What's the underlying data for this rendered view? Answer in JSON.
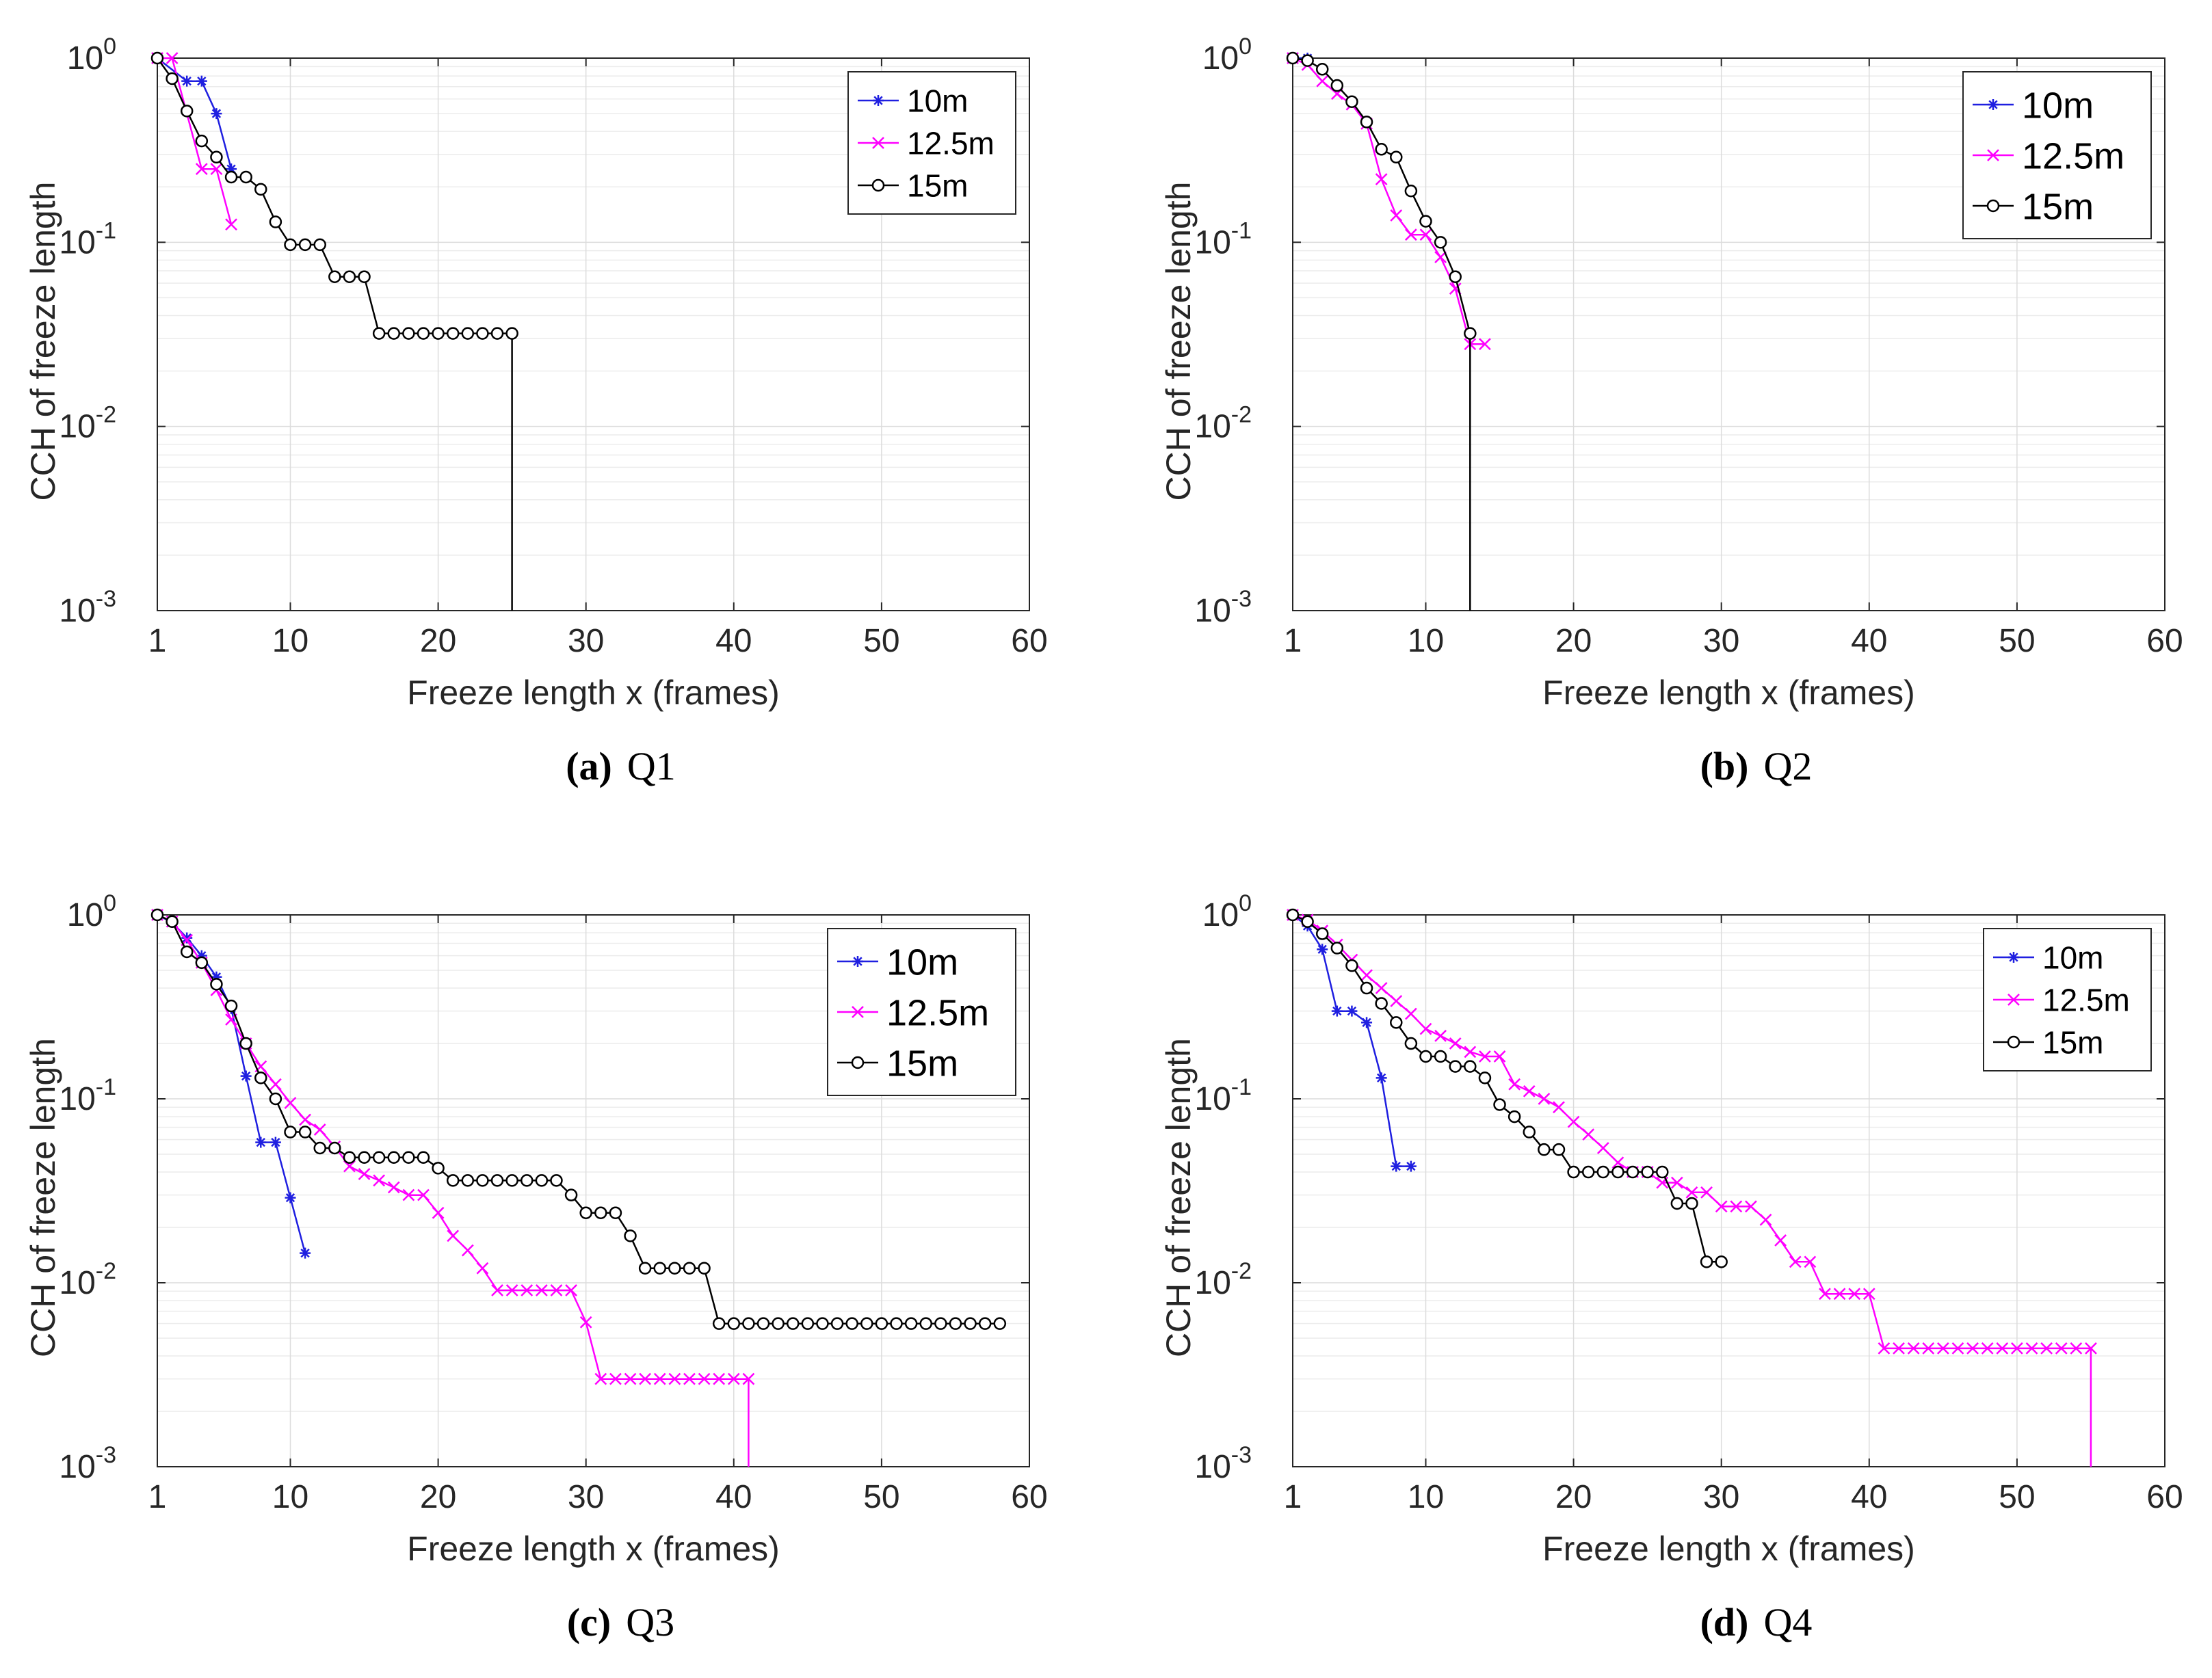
{
  "chart_data": [
    {
      "type": "line",
      "panel": "a",
      "caption_label": "(a)",
      "caption_text": "Q1",
      "xlabel": "Freeze length x (frames)",
      "ylabel": "CCH of freeze length",
      "xlim": [
        1,
        60
      ],
      "ylim": [
        0.001,
        1
      ],
      "yscale": "log",
      "grid": true,
      "x_ticks": [
        1,
        10,
        20,
        30,
        40,
        50,
        60
      ],
      "x_tick_labels": [
        "1",
        "10",
        "20",
        "30",
        "40",
        "50",
        "60"
      ],
      "y_ticks": [
        1,
        0.1,
        0.01,
        0.001
      ],
      "y_tick_bases": [
        "10",
        "10",
        "10",
        "10"
      ],
      "y_tick_exps": [
        "0",
        "-1",
        "-2",
        "-3"
      ],
      "legend_position": "top-right",
      "legend_size": "small",
      "series": [
        {
          "name": "10m",
          "color": "#1f1fe0",
          "marker": "star",
          "x": [
            1,
            3,
            4,
            5,
            6
          ],
          "y": [
            1,
            0.75,
            0.75,
            0.5,
            0.25
          ]
        },
        {
          "name": "12.5m",
          "color": "#ff00ff",
          "marker": "x",
          "x": [
            1,
            2,
            4,
            5,
            6
          ],
          "y": [
            1,
            1,
            0.25,
            0.25,
            0.125
          ]
        },
        {
          "name": "15m",
          "color": "#000000",
          "marker": "circle",
          "x": [
            1,
            2,
            3,
            4,
            5,
            6,
            7,
            8,
            9,
            10,
            11,
            12,
            13,
            14,
            15,
            16,
            17,
            18,
            19,
            20,
            21,
            22,
            23,
            24,
            25
          ],
          "y": [
            1,
            0.774,
            0.516,
            0.355,
            0.29,
            0.226,
            0.226,
            0.194,
            0.129,
            0.097,
            0.097,
            0.097,
            0.065,
            0.065,
            0.065,
            0.032,
            0.032,
            0.032,
            0.032,
            0.032,
            0.032,
            0.032,
            0.032,
            0.032,
            0.032
          ],
          "drop_to_bottom_at": 25
        }
      ]
    },
    {
      "type": "line",
      "panel": "b",
      "caption_label": "(b)",
      "caption_text": "Q2",
      "xlabel": "Freeze length x (frames)",
      "ylabel": "CCH of freeze length",
      "xlim": [
        1,
        60
      ],
      "ylim": [
        0.001,
        1
      ],
      "yscale": "log",
      "grid": true,
      "x_ticks": [
        1,
        10,
        20,
        30,
        40,
        50,
        60
      ],
      "x_tick_labels": [
        "1",
        "10",
        "20",
        "30",
        "40",
        "50",
        "60"
      ],
      "y_ticks": [
        1,
        0.1,
        0.01,
        0.001
      ],
      "y_tick_bases": [
        "10",
        "10",
        "10",
        "10"
      ],
      "y_tick_exps": [
        "0",
        "-1",
        "-2",
        "-3"
      ],
      "legend_position": "top-right",
      "legend_size": "large",
      "series": [
        {
          "name": "10m",
          "color": "#1f1fe0",
          "marker": "star",
          "x": [
            1,
            2
          ],
          "y": [
            1,
            1
          ]
        },
        {
          "name": "12.5m",
          "color": "#ff00ff",
          "marker": "x",
          "x": [
            1,
            2,
            3,
            4,
            5,
            6,
            7,
            8,
            9,
            10,
            11,
            12,
            13,
            14
          ],
          "y": [
            1,
            0.92,
            0.75,
            0.64,
            0.56,
            0.44,
            0.22,
            0.14,
            0.11,
            0.11,
            0.083,
            0.056,
            0.028,
            0.028
          ]
        },
        {
          "name": "15m",
          "color": "#000000",
          "marker": "circle",
          "x": [
            1,
            2,
            3,
            4,
            5,
            6,
            7,
            8,
            9,
            10,
            11,
            12,
            13
          ],
          "y": [
            1,
            0.97,
            0.87,
            0.71,
            0.58,
            0.45,
            0.32,
            0.29,
            0.19,
            0.13,
            0.1,
            0.065,
            0.032
          ],
          "drop_to_bottom_at": 13
        }
      ]
    },
    {
      "type": "line",
      "panel": "c",
      "caption_label": "(c)",
      "caption_text": "Q3",
      "xlabel": "Freeze length x (frames)",
      "ylabel": "CCH of freeze length",
      "xlim": [
        1,
        60
      ],
      "ylim": [
        0.001,
        1
      ],
      "yscale": "log",
      "grid": true,
      "x_ticks": [
        1,
        10,
        20,
        30,
        40,
        50,
        60
      ],
      "x_tick_labels": [
        "1",
        "10",
        "20",
        "30",
        "40",
        "50",
        "60"
      ],
      "y_ticks": [
        1,
        0.1,
        0.01,
        0.001
      ],
      "y_tick_bases": [
        "10",
        "10",
        "10",
        "10"
      ],
      "y_tick_exps": [
        "0",
        "-1",
        "-2",
        "-3"
      ],
      "legend_position": "top-right",
      "legend_size": "large",
      "series": [
        {
          "name": "10m",
          "color": "#1f1fe0",
          "marker": "star",
          "x": [
            1,
            2,
            3,
            4,
            5,
            6,
            7,
            8,
            9,
            10,
            11
          ],
          "y": [
            1,
            0.91,
            0.75,
            0.6,
            0.46,
            0.31,
            0.133,
            0.058,
            0.058,
            0.029,
            0.0145
          ]
        },
        {
          "name": "12.5m",
          "color": "#ff00ff",
          "marker": "x",
          "x": [
            1,
            2,
            3,
            4,
            5,
            6,
            7,
            8,
            9,
            10,
            11,
            12,
            13,
            14,
            15,
            16,
            17,
            18,
            19,
            20,
            21,
            22,
            23,
            24,
            25,
            26,
            27,
            28,
            29,
            30,
            31,
            32,
            33,
            34,
            35,
            36,
            37,
            38,
            39,
            40,
            41
          ],
          "y": [
            1,
            0.92,
            0.73,
            0.55,
            0.39,
            0.27,
            0.2,
            0.15,
            0.12,
            0.095,
            0.077,
            0.068,
            0.055,
            0.043,
            0.039,
            0.036,
            0.033,
            0.03,
            0.03,
            0.024,
            0.018,
            0.015,
            0.012,
            0.0091,
            0.0091,
            0.0091,
            0.0091,
            0.0091,
            0.0091,
            0.0061,
            0.003,
            0.003,
            0.003,
            0.003,
            0.003,
            0.003,
            0.003,
            0.003,
            0.003,
            0.003,
            0.003
          ],
          "drop_to_bottom_at": 41
        },
        {
          "name": "15m",
          "color": "#000000",
          "marker": "circle",
          "x": [
            1,
            2,
            3,
            4,
            5,
            6,
            7,
            8,
            9,
            10,
            11,
            12,
            13,
            14,
            15,
            16,
            17,
            18,
            19,
            20,
            21,
            22,
            23,
            24,
            25,
            26,
            27,
            28,
            29,
            30,
            31,
            32,
            33,
            34,
            35,
            36,
            37,
            38,
            39,
            40,
            41,
            42,
            43,
            44,
            45,
            46,
            47,
            48,
            49,
            50,
            51,
            52,
            53,
            54,
            55,
            56,
            57,
            58
          ],
          "y": [
            1,
            0.92,
            0.63,
            0.55,
            0.42,
            0.32,
            0.2,
            0.13,
            0.1,
            0.066,
            0.066,
            0.054,
            0.054,
            0.048,
            0.048,
            0.048,
            0.048,
            0.048,
            0.048,
            0.042,
            0.036,
            0.036,
            0.036,
            0.036,
            0.036,
            0.036,
            0.036,
            0.036,
            0.03,
            0.024,
            0.024,
            0.024,
            0.018,
            0.012,
            0.012,
            0.012,
            0.012,
            0.012,
            0.006,
            0.006,
            0.006,
            0.006,
            0.006,
            0.006,
            0.006,
            0.006,
            0.006,
            0.006,
            0.006,
            0.006,
            0.006,
            0.006,
            0.006,
            0.006,
            0.006,
            0.006,
            0.006,
            0.006
          ]
        }
      ]
    },
    {
      "type": "line",
      "panel": "d",
      "caption_label": "(d)",
      "caption_text": "Q4",
      "xlabel": "Freeze length x (frames)",
      "ylabel": "CCH of freeze length",
      "xlim": [
        1,
        60
      ],
      "ylim": [
        0.001,
        1
      ],
      "yscale": "log",
      "grid": true,
      "x_ticks": [
        1,
        10,
        20,
        30,
        40,
        50,
        60
      ],
      "x_tick_labels": [
        "1",
        "10",
        "20",
        "30",
        "40",
        "50",
        "60"
      ],
      "y_ticks": [
        1,
        0.1,
        0.01,
        0.001
      ],
      "y_tick_bases": [
        "10",
        "10",
        "10",
        "10"
      ],
      "y_tick_exps": [
        "0",
        "-1",
        "-2",
        "-3"
      ],
      "legend_position": "top-right",
      "legend_size": "small",
      "series": [
        {
          "name": "10m",
          "color": "#1f1fe0",
          "marker": "star",
          "x": [
            1,
            2,
            3,
            4,
            5,
            6,
            7,
            8,
            9
          ],
          "y": [
            1,
            0.87,
            0.65,
            0.3,
            0.3,
            0.26,
            0.13,
            0.043,
            0.043
          ]
        },
        {
          "name": "12.5m",
          "color": "#ff00ff",
          "marker": "x",
          "x": [
            1,
            2,
            3,
            4,
            5,
            6,
            7,
            8,
            9,
            10,
            11,
            12,
            13,
            14,
            15,
            16,
            17,
            18,
            19,
            20,
            21,
            22,
            23,
            24,
            25,
            26,
            27,
            28,
            29,
            30,
            31,
            32,
            33,
            34,
            35,
            36,
            37,
            38,
            39,
            40,
            41,
            42,
            43,
            44,
            45,
            46,
            47,
            48,
            49,
            50,
            51,
            52,
            53,
            54,
            55
          ],
          "y": [
            1,
            0.94,
            0.82,
            0.69,
            0.57,
            0.47,
            0.4,
            0.34,
            0.29,
            0.24,
            0.22,
            0.2,
            0.18,
            0.17,
            0.17,
            0.12,
            0.11,
            0.1,
            0.09,
            0.075,
            0.064,
            0.054,
            0.045,
            0.04,
            0.04,
            0.035,
            0.035,
            0.031,
            0.031,
            0.026,
            0.026,
            0.026,
            0.022,
            0.017,
            0.013,
            0.013,
            0.0087,
            0.0087,
            0.0087,
            0.0087,
            0.0044,
            0.0044,
            0.0044,
            0.0044,
            0.0044,
            0.0044,
            0.0044,
            0.0044,
            0.0044,
            0.0044,
            0.0044,
            0.0044,
            0.0044,
            0.0044,
            0.0044
          ],
          "drop_to_bottom_at": 55
        },
        {
          "name": "15m",
          "color": "#000000",
          "marker": "circle",
          "x": [
            1,
            2,
            3,
            4,
            5,
            6,
            7,
            8,
            9,
            10,
            11,
            12,
            13,
            14,
            15,
            16,
            17,
            18,
            19,
            20,
            21,
            22,
            23,
            24,
            25,
            26,
            27,
            28,
            29,
            30
          ],
          "y": [
            1,
            0.92,
            0.79,
            0.66,
            0.53,
            0.4,
            0.33,
            0.26,
            0.2,
            0.17,
            0.17,
            0.15,
            0.15,
            0.13,
            0.093,
            0.08,
            0.066,
            0.053,
            0.053,
            0.04,
            0.04,
            0.04,
            0.04,
            0.04,
            0.04,
            0.04,
            0.027,
            0.027,
            0.013,
            0.013
          ]
        }
      ]
    }
  ]
}
